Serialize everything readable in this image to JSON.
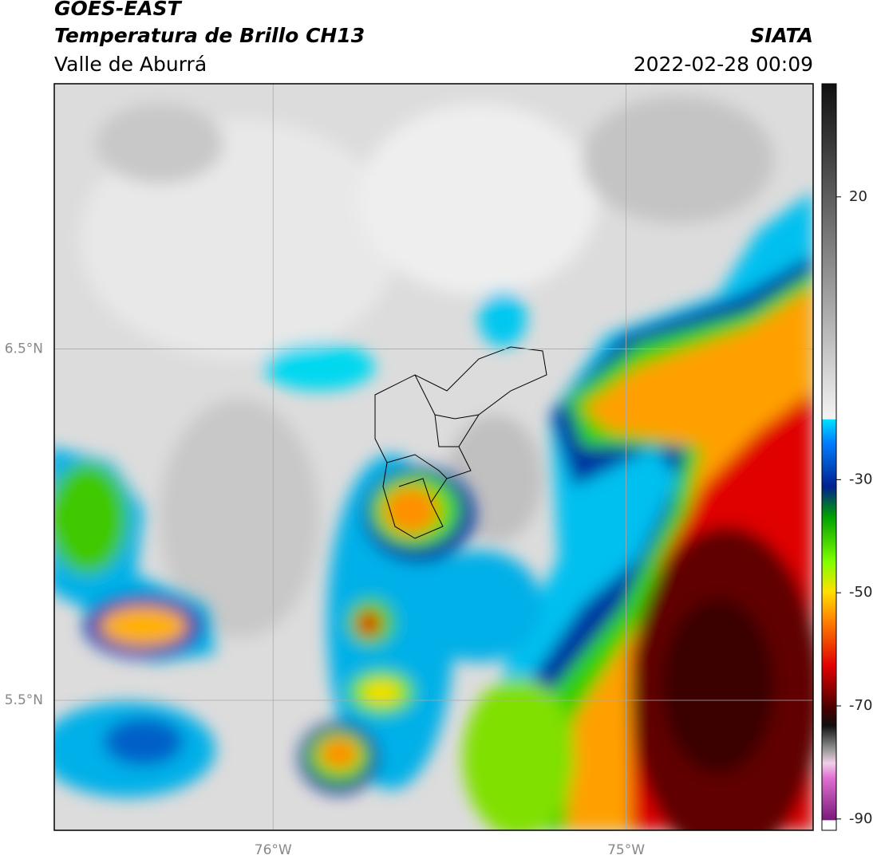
{
  "header": {
    "title": "GOES-EAST",
    "subtitle": "Temperatura de Brillo CH13",
    "region": "Valle de Aburrá",
    "source": "SIATA",
    "datetime": "2022-02-28 00:09"
  },
  "map": {
    "xlim": [
      -76.62,
      -74.47
    ],
    "ylim": [
      5.13,
      7.255
    ],
    "xticks": [
      {
        "value": -76,
        "label": "76°W"
      },
      {
        "value": -75,
        "label": "75°W"
      }
    ],
    "yticks": [
      {
        "value": 6.5,
        "label": "6.5°N"
      },
      {
        "value": 5.5,
        "label": "5.5°N"
      }
    ],
    "grid": true
  },
  "colorbar": {
    "lim": [
      -92,
      40
    ],
    "ticks": [
      20,
      -30,
      -50,
      -70,
      -90
    ]
  }
}
